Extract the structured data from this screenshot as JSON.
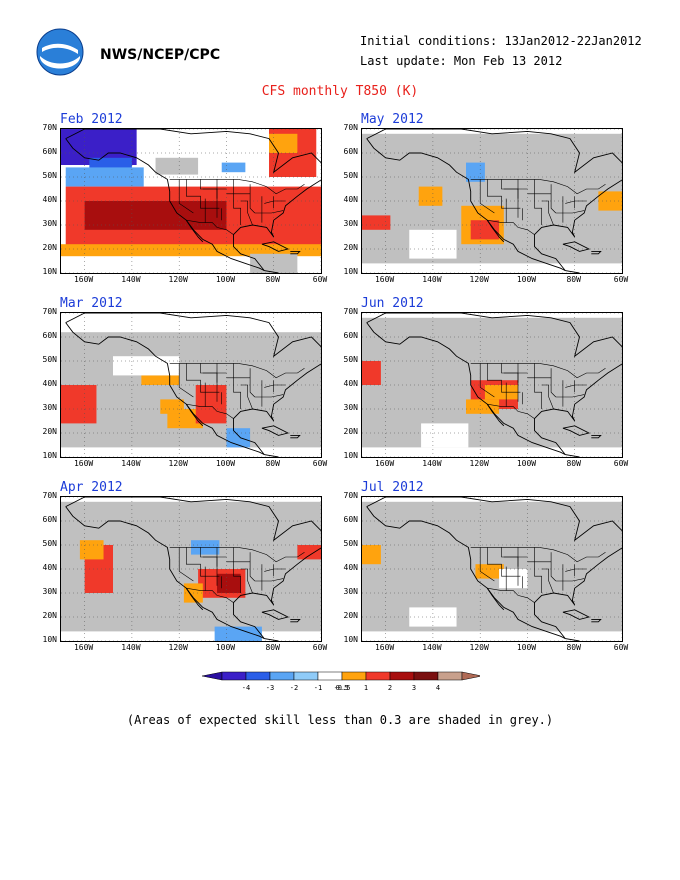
{
  "header": {
    "agency": "NWS/NCEP/CPC",
    "initial_conditions": "Initial conditions: 13Jan2012-22Jan2012",
    "last_update": "Last update: Mon Feb 13 2012",
    "title": "CFS monthly T850 (K)"
  },
  "axes": {
    "lat_labels": [
      "70N",
      "60N",
      "50N",
      "40N",
      "30N",
      "20N",
      "10N"
    ],
    "lat_values": [
      70,
      60,
      50,
      40,
      30,
      20,
      10
    ],
    "lon_labels": [
      "160W",
      "140W",
      "120W",
      "100W",
      "80W",
      "60W"
    ],
    "lon_values": [
      -160,
      -140,
      -120,
      -100,
      -80,
      -60
    ],
    "lon_range": [
      -170,
      -60
    ],
    "lat_range": [
      10,
      70
    ]
  },
  "colors": {
    "skill_grey": "#c0c0c0",
    "land_line": "#000000"
  },
  "panels": [
    {
      "title": "Feb 2012",
      "patches": [
        {
          "lon": [
            -170,
            -138
          ],
          "lat": [
            55,
            70
          ],
          "color": "#3b1fc8"
        },
        {
          "lon": [
            -158,
            -140
          ],
          "lat": [
            50,
            58
          ],
          "color": "#2a5ee8"
        },
        {
          "lon": [
            -168,
            -135
          ],
          "lat": [
            46,
            54
          ],
          "color": "#5aa5f4"
        },
        {
          "lon": [
            -130,
            -112
          ],
          "lat": [
            51,
            58
          ],
          "color": "#c0c0c0"
        },
        {
          "lon": [
            -168,
            -60
          ],
          "lat": [
            20,
            46
          ],
          "color": "#f0392a"
        },
        {
          "lon": [
            -160,
            -100
          ],
          "lat": [
            28,
            40
          ],
          "color": "#a80e0e"
        },
        {
          "lon": [
            -170,
            -60
          ],
          "lat": [
            17,
            22
          ],
          "color": "#ffa30e"
        },
        {
          "lon": [
            -90,
            -70
          ],
          "lat": [
            10,
            18
          ],
          "color": "#c0c0c0"
        },
        {
          "lon": [
            -82,
            -62
          ],
          "lat": [
            50,
            70
          ],
          "color": "#f0392a"
        },
        {
          "lon": [
            -82,
            -70
          ],
          "lat": [
            60,
            68
          ],
          "color": "#ffa30e"
        },
        {
          "lon": [
            -102,
            -92
          ],
          "lat": [
            52,
            56
          ],
          "color": "#5aa5f4"
        }
      ]
    },
    {
      "title": "Mar 2012",
      "patches": [
        {
          "lon": [
            -170,
            -60
          ],
          "lat": [
            14,
            62
          ],
          "color": "#c0c0c0"
        },
        {
          "lon": [
            -170,
            -155
          ],
          "lat": [
            24,
            40
          ],
          "color": "#f0392a"
        },
        {
          "lon": [
            -125,
            -110
          ],
          "lat": [
            22,
            30
          ],
          "color": "#ffa30e"
        },
        {
          "lon": [
            -113,
            -100
          ],
          "lat": [
            24,
            40
          ],
          "color": "#f0392a"
        },
        {
          "lon": [
            -136,
            -120
          ],
          "lat": [
            40,
            44
          ],
          "color": "#ffa30e"
        },
        {
          "lon": [
            -100,
            -90
          ],
          "lat": [
            14,
            22
          ],
          "color": "#5aa5f4"
        },
        {
          "lon": [
            -148,
            -120
          ],
          "lat": [
            44,
            52
          ],
          "color": "#ffffff"
        },
        {
          "lon": [
            -128,
            -118
          ],
          "lat": [
            28,
            34
          ],
          "color": "#ffa30e"
        }
      ]
    },
    {
      "title": "Apr 2012",
      "patches": [
        {
          "lon": [
            -170,
            -60
          ],
          "lat": [
            14,
            68
          ],
          "color": "#c0c0c0"
        },
        {
          "lon": [
            -160,
            -148
          ],
          "lat": [
            30,
            50
          ],
          "color": "#f0392a"
        },
        {
          "lon": [
            -162,
            -152
          ],
          "lat": [
            44,
            52
          ],
          "color": "#ffa30e"
        },
        {
          "lon": [
            -112,
            -92
          ],
          "lat": [
            28,
            40
          ],
          "color": "#f0392a"
        },
        {
          "lon": [
            -118,
            -110
          ],
          "lat": [
            26,
            34
          ],
          "color": "#ffa30e"
        },
        {
          "lon": [
            -104,
            -94
          ],
          "lat": [
            30,
            38
          ],
          "color": "#a80e0e"
        },
        {
          "lon": [
            -105,
            -85
          ],
          "lat": [
            10,
            16
          ],
          "color": "#5aa5f4"
        },
        {
          "lon": [
            -115,
            -103
          ],
          "lat": [
            46,
            52
          ],
          "color": "#5aa5f4"
        },
        {
          "lon": [
            -70,
            -60
          ],
          "lat": [
            44,
            50
          ],
          "color": "#f0392a"
        }
      ]
    },
    {
      "title": "May 2012",
      "patches": [
        {
          "lon": [
            -170,
            -60
          ],
          "lat": [
            14,
            68
          ],
          "color": "#c0c0c0"
        },
        {
          "lon": [
            -146,
            -136
          ],
          "lat": [
            38,
            46
          ],
          "color": "#ffa30e"
        },
        {
          "lon": [
            -128,
            -110
          ],
          "lat": [
            22,
            38
          ],
          "color": "#ffa30e"
        },
        {
          "lon": [
            -124,
            -112
          ],
          "lat": [
            24,
            32
          ],
          "color": "#f0392a"
        },
        {
          "lon": [
            -170,
            -158
          ],
          "lat": [
            28,
            34
          ],
          "color": "#f0392a"
        },
        {
          "lon": [
            -126,
            -118
          ],
          "lat": [
            48,
            56
          ],
          "color": "#5aa5f4"
        },
        {
          "lon": [
            -70,
            -60
          ],
          "lat": [
            36,
            44
          ],
          "color": "#ffa30e"
        },
        {
          "lon": [
            -150,
            -130
          ],
          "lat": [
            16,
            28
          ],
          "color": "#ffffff"
        }
      ]
    },
    {
      "title": "Jun 2012",
      "patches": [
        {
          "lon": [
            -170,
            -60
          ],
          "lat": [
            14,
            68
          ],
          "color": "#c0c0c0"
        },
        {
          "lon": [
            -170,
            -162
          ],
          "lat": [
            40,
            50
          ],
          "color": "#f0392a"
        },
        {
          "lon": [
            -124,
            -104
          ],
          "lat": [
            30,
            42
          ],
          "color": "#f0392a"
        },
        {
          "lon": [
            -126,
            -112
          ],
          "lat": [
            28,
            34
          ],
          "color": "#ffa30e"
        },
        {
          "lon": [
            -118,
            -104
          ],
          "lat": [
            34,
            40
          ],
          "color": "#ffa30e"
        },
        {
          "lon": [
            -145,
            -125
          ],
          "lat": [
            14,
            24
          ],
          "color": "#ffffff"
        }
      ]
    },
    {
      "title": "Jul 2012",
      "patches": [
        {
          "lon": [
            -170,
            -60
          ],
          "lat": [
            14,
            68
          ],
          "color": "#c0c0c0"
        },
        {
          "lon": [
            -170,
            -162
          ],
          "lat": [
            42,
            50
          ],
          "color": "#ffa30e"
        },
        {
          "lon": [
            -122,
            -110
          ],
          "lat": [
            36,
            42
          ],
          "color": "#ffa30e"
        },
        {
          "lon": [
            -112,
            -100
          ],
          "lat": [
            32,
            40
          ],
          "color": "#ffffff"
        },
        {
          "lon": [
            -150,
            -130
          ],
          "lat": [
            16,
            24
          ],
          "color": "#ffffff"
        }
      ]
    }
  ],
  "colorbar": {
    "labels": [
      "-4",
      "-3",
      "-2",
      "-1",
      "-0.5",
      "0.5",
      "1",
      "2",
      "3",
      "4"
    ],
    "colors": [
      "#3b1fc8",
      "#2a5ee8",
      "#5aa5f4",
      "#8fcbf8",
      "#ffffff",
      "#ffa30e",
      "#f0392a",
      "#a80e0e",
      "#7a0f0f",
      "#c8a08c"
    ],
    "end_low": "#2a0fa0",
    "end_high": "#b06a55"
  },
  "note": "(Areas of expected skill less than 0.3 are shaded in grey.)"
}
